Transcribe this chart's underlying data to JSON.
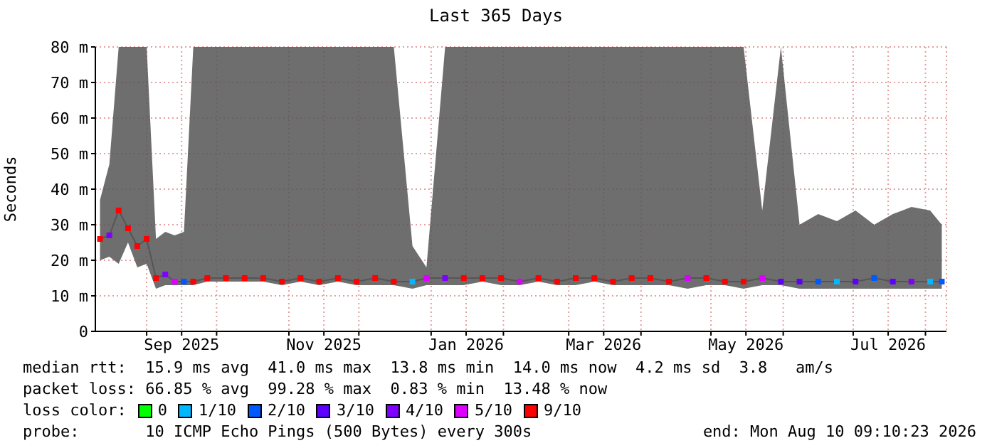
{
  "chart_data": {
    "type": "line",
    "title": "Last 365 Days",
    "ylabel": "Seconds",
    "legend_title": "loss color:",
    "legend": "bottom",
    "grid": true,
    "xlim": [
      "2025-08-10",
      "2026-08-10"
    ],
    "xticks": [
      {
        "value": "2025-09-01",
        "label": null
      },
      {
        "value": "2025-09-16",
        "label": "Sep 2025"
      },
      {
        "value": "2025-10-01",
        "label": null
      },
      {
        "value": "2025-11-01",
        "label": null
      },
      {
        "value": "2025-11-16",
        "label": "Nov 2025"
      },
      {
        "value": "2025-12-01",
        "label": null
      },
      {
        "value": "2026-01-01",
        "label": null
      },
      {
        "value": "2026-01-16",
        "label": "Jan 2026"
      },
      {
        "value": "2026-02-01",
        "label": null
      },
      {
        "value": "2026-03-01",
        "label": null
      },
      {
        "value": "2026-03-16",
        "label": "Mar 2026"
      },
      {
        "value": "2026-04-01",
        "label": null
      },
      {
        "value": "2026-05-01",
        "label": null
      },
      {
        "value": "2026-05-16",
        "label": "May 2026"
      },
      {
        "value": "2026-06-01",
        "label": null
      },
      {
        "value": "2026-07-01",
        "label": null
      },
      {
        "value": "2026-07-16",
        "label": "Jul 2026"
      },
      {
        "value": "2026-08-01",
        "label": null
      }
    ],
    "ylim": [
      0,
      80
    ],
    "yticks": [
      0,
      {
        "value": 10,
        "label": "10 m"
      },
      {
        "value": 20,
        "label": "20 m"
      },
      {
        "value": 30,
        "label": "30 m"
      },
      {
        "value": 40,
        "label": "40 m"
      },
      {
        "value": 50,
        "label": "50 m"
      },
      {
        "value": 60,
        "label": "60 m"
      },
      {
        "value": 70,
        "label": "70 m"
      },
      {
        "value": 80,
        "label": "80 m"
      }
    ],
    "series": [
      {
        "color": "#555555",
        "marker": "none",
        "x": [
          "2025-08-12",
          "2025-08-16",
          "2025-08-20",
          "2025-08-24",
          "2025-08-28",
          "2025-09-01",
          "2025-09-05",
          "2025-09-09",
          "2025-09-13",
          "2025-09-17",
          "2025-09-21",
          "2025-09-27",
          "2025-10-05",
          "2025-10-13",
          "2025-10-21",
          "2025-10-29",
          "2025-11-06",
          "2025-11-14",
          "2025-11-22",
          "2025-11-30",
          "2025-12-08",
          "2025-12-16",
          "2025-12-24",
          "2025-12-30",
          "2026-01-07",
          "2026-01-15",
          "2026-01-23",
          "2026-01-31",
          "2026-02-08",
          "2026-02-16",
          "2026-02-24",
          "2026-03-04",
          "2026-03-12",
          "2026-03-20",
          "2026-03-28",
          "2026-04-05",
          "2026-04-13",
          "2026-04-21",
          "2026-04-29",
          "2026-05-07",
          "2026-05-15",
          "2026-05-23",
          "2026-05-31",
          "2026-06-08",
          "2026-06-16",
          "2026-06-24",
          "2026-07-02",
          "2026-07-10",
          "2026-07-18",
          "2026-07-26",
          "2026-08-03",
          "2026-08-08"
        ],
        "values": [
          26,
          27,
          34,
          29,
          24,
          26,
          15,
          16,
          14,
          14,
          14,
          15,
          15,
          15,
          15,
          14,
          15,
          14,
          15,
          14,
          15,
          14,
          14,
          15,
          15,
          15,
          15,
          15,
          14,
          15,
          14,
          15,
          15,
          14,
          15,
          15,
          14,
          15,
          15,
          14,
          14,
          15,
          14,
          14,
          14,
          14,
          14,
          15,
          14,
          14,
          14,
          14
        ],
        "lower": [
          20,
          21,
          19,
          25,
          18,
          19,
          12,
          13,
          13,
          13,
          13,
          14,
          14,
          14,
          14,
          13,
          14,
          13,
          14,
          13,
          13,
          13,
          12,
          13,
          13,
          13,
          14,
          13,
          13,
          14,
          13,
          13,
          14,
          13,
          13,
          13,
          13,
          12,
          13,
          13,
          12,
          13,
          13,
          12,
          12,
          12,
          12,
          12,
          12,
          12,
          12,
          12
        ],
        "upper": [
          37,
          47,
          80,
          80,
          80,
          80,
          26,
          28,
          27,
          28,
          80,
          80,
          80,
          80,
          80,
          80,
          80,
          80,
          80,
          80,
          80,
          80,
          24,
          18,
          80,
          80,
          80,
          80,
          80,
          80,
          80,
          80,
          80,
          80,
          80,
          80,
          80,
          80,
          80,
          80,
          80,
          34,
          80,
          30,
          33,
          31,
          34,
          30,
          33,
          35,
          34,
          30
        ]
      },
      {
        "type": "scatter",
        "marker": "square",
        "name": "0",
        "color": "#00ff00"
      },
      {
        "type": "scatter",
        "marker": "square",
        "name": "1/10",
        "color": "#00b8ff",
        "x": [
          "2025-12-24",
          "2026-06-24",
          "2026-08-03"
        ],
        "values": [
          14,
          14,
          14
        ]
      },
      {
        "type": "scatter",
        "marker": "square",
        "name": "2/10",
        "color": "#0059ff",
        "x": [
          "2025-09-17",
          "2026-06-16",
          "2026-07-10",
          "2026-08-08"
        ],
        "values": [
          14,
          14,
          15,
          14
        ]
      },
      {
        "type": "scatter",
        "marker": "square",
        "name": "3/10",
        "color": "#5e00ff",
        "x": [
          "2026-05-31",
          "2026-06-08",
          "2026-07-02",
          "2026-07-18"
        ],
        "values": [
          14,
          14,
          14,
          14
        ]
      },
      {
        "type": "scatter",
        "marker": "square",
        "name": "4/10",
        "color": "#7e00ff",
        "x": [
          "2025-08-16",
          "2025-09-09",
          "2026-01-07",
          "2026-07-26"
        ],
        "values": [
          27,
          16,
          15,
          14
        ]
      },
      {
        "type": "scatter",
        "marker": "square",
        "name": "5/10",
        "color": "#dd00ff",
        "x": [
          "2025-09-13",
          "2025-12-30",
          "2026-02-08",
          "2026-04-21",
          "2026-05-23"
        ],
        "values": [
          14,
          15,
          14,
          15,
          15
        ]
      },
      {
        "type": "scatter",
        "marker": "square",
        "name": "9/10",
        "color": "#ff0000",
        "x": [
          "2025-08-12",
          "2025-08-20",
          "2025-08-24",
          "2025-08-28",
          "2025-09-01",
          "2025-09-05",
          "2025-09-21",
          "2025-09-27",
          "2025-10-05",
          "2025-10-13",
          "2025-10-21",
          "2025-10-29",
          "2025-11-06",
          "2025-11-14",
          "2025-11-22",
          "2025-11-30",
          "2025-12-08",
          "2025-12-16",
          "2026-01-15",
          "2026-01-23",
          "2026-01-31",
          "2026-02-16",
          "2026-02-24",
          "2026-03-04",
          "2026-03-12",
          "2026-03-20",
          "2026-03-28",
          "2026-04-05",
          "2026-04-13",
          "2026-04-29",
          "2026-05-07",
          "2026-05-15"
        ],
        "values": [
          26,
          34,
          29,
          24,
          26,
          15,
          14,
          15,
          15,
          15,
          15,
          14,
          15,
          14,
          15,
          14,
          15,
          14,
          15,
          15,
          15,
          15,
          14,
          15,
          15,
          14,
          15,
          15,
          14,
          15,
          14,
          14
        ]
      }
    ],
    "annotations": [
      "median rtt:  15.9 ms avg  41.0 ms max  13.8 ms min  14.0 ms now  4.2 ms sd  3.8   am/s",
      "packet loss: 66.85 % avg  99.28 % max  0.83 % min  13.48 % now",
      "probe:       10 ICMP Echo Pings (500 Bytes) every 300s",
      "end: Mon Aug 10 09:10:23 2026"
    ]
  }
}
